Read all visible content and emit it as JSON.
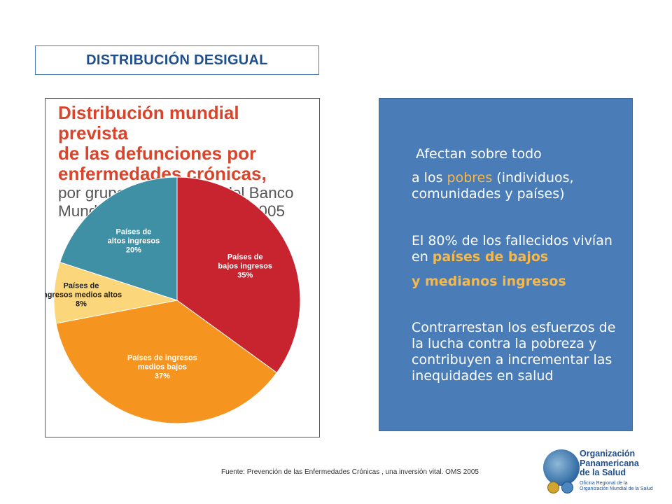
{
  "header": {
    "title": "DISTRIBUCIÓN  DESIGUAL"
  },
  "chart_data": {
    "type": "pie",
    "title_lines": [
      "Distribución mundial prevista",
      "de las defunciones por",
      "enfermedades crónicas,"
    ],
    "subtitle_lines": [
      "por grupos de ingresos del Banco",
      "Mundial, todas las edades, 2005"
    ],
    "slices": [
      {
        "label_lines": [
          "Países de",
          "bajos ingresos",
          "35%"
        ],
        "value": 35,
        "color": "#c8242f"
      },
      {
        "label_lines": [
          "Países de ingresos",
          "medios bajos",
          "37%"
        ],
        "value": 37,
        "color": "#f5941f"
      },
      {
        "label_lines": [
          "Países de",
          "ingresos medios altos",
          "8%"
        ],
        "value": 8,
        "color": "#fbd67a"
      },
      {
        "label_lines": [
          "Países de",
          "altos ingresos",
          "20%"
        ],
        "value": 20,
        "color": "#3f8fa5"
      }
    ]
  },
  "panel": {
    "line1": "Afectan sobre todo",
    "line2_pre": "a los ",
    "line2_hl": "pobres",
    "line2_post": " (individuos, comunidades y países)",
    "line3_pre": "El 80% de los fallecidos vivían en ",
    "line3_hl": "países de bajos",
    "line4_hl": "y medianos ingresos",
    "line5": "Contrarrestan los esfuerzos de la lucha contra la pobreza y contribuyen a incrementar las inequidades en salud"
  },
  "footer": {
    "source": "Fuente: Prevención de las Enfermedades Crónicas , una inversión vital. OMS 2005"
  },
  "logo": {
    "name_lines": [
      "Organización",
      "Panamericana",
      "de la Salud"
    ],
    "small_lines": [
      "Oficina Regional de la",
      "Organización Mundial de la Salud"
    ]
  }
}
